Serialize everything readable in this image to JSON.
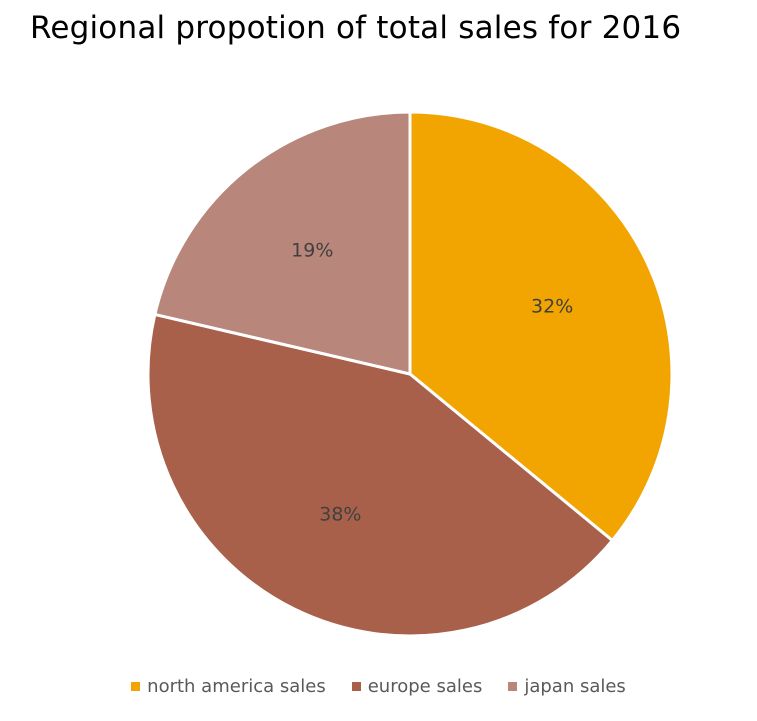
{
  "chart_data": {
    "type": "pie",
    "title": "Regional propotion of total sales for 2016",
    "series": [
      {
        "name": "north america sales",
        "value": 32,
        "label": "32%",
        "color": "#F2A500"
      },
      {
        "name": "europe sales",
        "value": 38,
        "label": "38%",
        "color": "#A9604A"
      },
      {
        "name": "japan sales",
        "value": 19,
        "label": "19%",
        "color": "#B9867C"
      }
    ],
    "legend_position": "bottom"
  },
  "colors": {
    "slice_border": "#ffffff",
    "data_label": "#404040"
  }
}
